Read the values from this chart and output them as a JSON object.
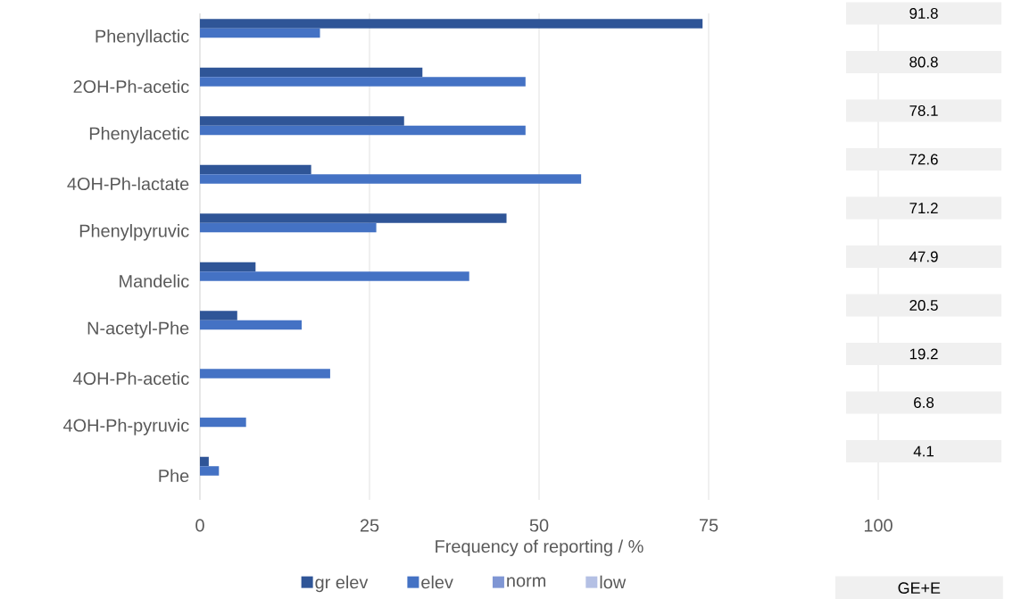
{
  "chart_data": [
    {
      "type": "bar",
      "orientation": "horizontal",
      "xlabel": "Frequency of reporting / %",
      "categories": [
        "Phenyllactic",
        "2OH-Ph-acetic",
        "Phenylacetic",
        "4OH-Ph-lactate",
        "Phenylpyruvic",
        "Mandelic",
        "N-acetyl-Phe",
        "4OH-Ph-acetic",
        "4OH-Ph-pyruvic",
        "Phe"
      ],
      "series": [
        {
          "name": "gr elev",
          "color": "#2f5597",
          "values": [
            74.1,
            32.8,
            30.1,
            16.4,
            45.2,
            8.2,
            5.5,
            null,
            null,
            1.3
          ]
        },
        {
          "name": "elev",
          "color": "#4472c4",
          "values": [
            17.7,
            48.0,
            48.0,
            56.2,
            26.0,
            39.7,
            15.0,
            19.2,
            6.8,
            2.8
          ]
        },
        {
          "name": "norm",
          "color": "#7f96d4",
          "values": [
            null,
            null,
            null,
            null,
            null,
            null,
            null,
            null,
            null,
            null
          ]
        },
        {
          "name": "low",
          "color": "#b4c0e4",
          "values": [
            null,
            null,
            null,
            null,
            null,
            null,
            null,
            null,
            null,
            null
          ]
        }
      ],
      "xlim": [
        0,
        100
      ],
      "xticks": [
        0,
        25,
        50,
        75,
        100
      ],
      "grid": "x",
      "legend": "bottom"
    },
    {
      "type": "other",
      "title": "GE+E",
      "annotations": [
        "91.8",
        "80.8",
        "78.1",
        "72.6",
        "71.2",
        "47.9",
        "20.5",
        "19.2",
        "6.8",
        "4.1"
      ]
    }
  ]
}
